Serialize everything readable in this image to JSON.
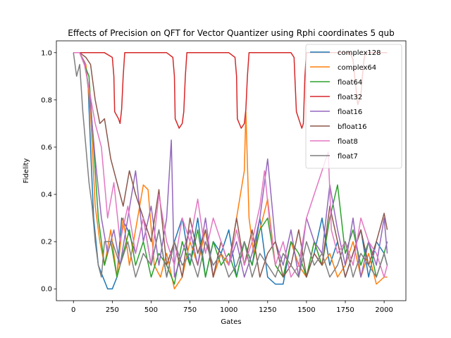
{
  "chart_data": {
    "type": "line",
    "title": "Effects of Precision on QFT for Vector Quantizer using Rphi coordinates 5 qub",
    "xlabel": "Gates",
    "ylabel": "Fidelity",
    "xlim": [
      -110,
      2140
    ],
    "ylim": [
      -0.05,
      1.05
    ],
    "xticks": [
      0,
      250,
      500,
      750,
      1000,
      1250,
      1500,
      1750,
      2000
    ],
    "yticks": [
      0.0,
      0.2,
      0.4,
      0.6,
      0.8,
      1.0
    ],
    "xtick_labels": [
      "0",
      "250",
      "500",
      "750",
      "1000",
      "1250",
      "1500",
      "1750",
      "2000"
    ],
    "ytick_labels": [
      "0.0",
      "0.2",
      "0.4",
      "0.6",
      "0.8",
      "1.0"
    ],
    "grid": false,
    "legend_position": "top-right",
    "series": [
      {
        "name": "complex128",
        "color": "#1f77b4",
        "x": [
          0,
          40,
          70,
          80,
          95,
          110,
          130,
          160,
          190,
          220,
          250,
          280,
          310,
          350,
          400,
          450,
          500,
          550,
          600,
          650,
          700,
          750,
          800,
          850,
          900,
          950,
          1000,
          1050,
          1100,
          1150,
          1200,
          1250,
          1300,
          1350,
          1400,
          1450,
          1500,
          1550,
          1600,
          1650,
          1700,
          1750,
          1800,
          1850,
          1900,
          1950,
          2000,
          2020
        ],
        "values": [
          1.0,
          1.0,
          0.95,
          0.93,
          0.85,
          0.6,
          0.3,
          0.1,
          0.05,
          0.0,
          0.0,
          0.05,
          0.3,
          0.25,
          0.15,
          0.3,
          0.1,
          0.25,
          0.05,
          0.2,
          0.3,
          0.1,
          0.3,
          0.05,
          0.2,
          0.15,
          0.25,
          0.05,
          0.2,
          0.1,
          0.3,
          0.05,
          0.02,
          0.02,
          0.2,
          0.1,
          0.05,
          0.15,
          0.3,
          0.1,
          0.2,
          0.05,
          0.15,
          0.25,
          0.05,
          0.2,
          0.15,
          0.1
        ]
      },
      {
        "name": "complex64",
        "color": "#ff7f0e",
        "x": [
          0,
          40,
          80,
          110,
          140,
          170,
          200,
          240,
          280,
          320,
          360,
          400,
          450,
          480,
          520,
          560,
          600,
          650,
          700,
          750,
          800,
          850,
          900,
          950,
          1000,
          1050,
          1100,
          1110,
          1130,
          1160,
          1200,
          1250,
          1300,
          1350,
          1400,
          1450,
          1500,
          1550,
          1600,
          1650,
          1700,
          1750,
          1800,
          1850,
          1900,
          1950,
          2000,
          2020
        ],
        "values": [
          1.0,
          1.0,
          0.95,
          0.75,
          0.35,
          0.2,
          0.1,
          0.25,
          0.05,
          0.3,
          0.1,
          0.25,
          0.44,
          0.42,
          0.1,
          0.05,
          0.15,
          0.0,
          0.05,
          0.2,
          0.1,
          0.25,
          0.05,
          0.15,
          0.1,
          0.3,
          0.5,
          0.75,
          0.3,
          0.15,
          0.25,
          0.38,
          0.1,
          0.05,
          0.2,
          0.1,
          0.05,
          0.2,
          0.1,
          0.15,
          0.05,
          0.1,
          0.2,
          0.05,
          0.15,
          0.02,
          0.05,
          0.05
        ]
      },
      {
        "name": "float64",
        "color": "#2ca02c",
        "x": [
          0,
          40,
          70,
          100,
          130,
          160,
          200,
          240,
          280,
          320,
          360,
          400,
          450,
          500,
          550,
          600,
          650,
          700,
          750,
          800,
          850,
          900,
          950,
          1000,
          1050,
          1100,
          1150,
          1200,
          1250,
          1300,
          1350,
          1400,
          1450,
          1500,
          1550,
          1600,
          1650,
          1700,
          1750,
          1800,
          1850,
          1900,
          1950,
          2000,
          2020
        ],
        "values": [
          1.0,
          1.0,
          0.95,
          0.9,
          0.6,
          0.3,
          0.1,
          0.2,
          0.05,
          0.15,
          0.25,
          0.1,
          0.2,
          0.05,
          0.15,
          0.1,
          0.02,
          0.2,
          0.1,
          0.25,
          0.05,
          0.2,
          0.1,
          0.15,
          0.05,
          0.2,
          0.1,
          0.25,
          0.3,
          0.1,
          0.05,
          0.2,
          0.15,
          0.05,
          0.2,
          0.1,
          0.3,
          0.44,
          0.15,
          0.25,
          0.1,
          0.2,
          0.05,
          0.15,
          0.2
        ]
      },
      {
        "name": "float32",
        "color": "#d62728",
        "x": [
          0,
          200,
          250,
          260,
          265,
          290,
          300,
          310,
          320,
          330,
          600,
          640,
          650,
          655,
          680,
          700,
          710,
          720,
          730,
          1000,
          1040,
          1050,
          1055,
          1080,
          1100,
          1110,
          1120,
          1130,
          1400,
          1420,
          1425,
          1435,
          1450,
          1470,
          1480,
          1490,
          1500,
          1780,
          1800,
          1810,
          1830,
          1850,
          1860,
          1870,
          1880,
          2020
        ],
        "values": [
          1.0,
          1.0,
          0.98,
          0.9,
          0.75,
          0.72,
          0.7,
          0.76,
          0.9,
          1.0,
          1.0,
          0.98,
          0.9,
          0.72,
          0.68,
          0.7,
          0.75,
          0.9,
          1.0,
          1.0,
          0.98,
          0.9,
          0.72,
          0.68,
          0.7,
          0.76,
          0.9,
          1.0,
          1.0,
          0.98,
          0.9,
          0.75,
          0.72,
          0.68,
          0.7,
          0.9,
          1.0,
          1.0,
          0.97,
          0.9,
          0.78,
          0.82,
          0.9,
          0.97,
          1.0,
          1.0
        ]
      },
      {
        "name": "float16",
        "color": "#9467bd",
        "x": [
          0,
          40,
          70,
          100,
          140,
          180,
          220,
          260,
          300,
          350,
          400,
          450,
          500,
          550,
          600,
          630,
          650,
          700,
          750,
          800,
          850,
          900,
          950,
          1000,
          1050,
          1100,
          1150,
          1200,
          1250,
          1300,
          1350,
          1400,
          1450,
          1500,
          1550,
          1600,
          1650,
          1700,
          1750,
          1800,
          1850,
          1900,
          1950,
          2000,
          2020
        ],
        "values": [
          1.0,
          1.0,
          0.96,
          0.85,
          0.55,
          0.3,
          0.15,
          0.25,
          0.1,
          0.3,
          0.5,
          0.2,
          0.35,
          0.1,
          0.3,
          0.63,
          0.05,
          0.15,
          0.25,
          0.1,
          0.3,
          0.05,
          0.2,
          0.1,
          0.2,
          0.05,
          0.15,
          0.3,
          0.55,
          0.2,
          0.1,
          0.25,
          0.05,
          0.3,
          0.2,
          0.15,
          0.44,
          0.25,
          0.1,
          0.3,
          0.05,
          0.2,
          0.1,
          0.3,
          0.15
        ]
      },
      {
        "name": "bfloat16",
        "color": "#8c564b",
        "x": [
          0,
          40,
          80,
          110,
          140,
          170,
          200,
          240,
          280,
          320,
          360,
          400,
          450,
          500,
          550,
          600,
          650,
          700,
          750,
          800,
          850,
          900,
          950,
          1000,
          1050,
          1100,
          1150,
          1200,
          1250,
          1300,
          1350,
          1400,
          1450,
          1500,
          1550,
          1600,
          1650,
          1700,
          1750,
          1800,
          1850,
          1900,
          1950,
          2000,
          2020
        ],
        "values": [
          1.0,
          1.0,
          0.98,
          0.95,
          0.8,
          0.7,
          0.72,
          0.55,
          0.45,
          0.35,
          0.5,
          0.4,
          0.3,
          0.2,
          0.42,
          0.1,
          0.2,
          0.05,
          0.3,
          0.15,
          0.25,
          0.05,
          0.2,
          0.1,
          0.3,
          0.1,
          0.25,
          0.05,
          0.15,
          0.2,
          0.05,
          0.1,
          0.25,
          0.05,
          0.15,
          0.1,
          0.35,
          0.2,
          0.05,
          0.15,
          0.25,
          0.1,
          0.2,
          0.32,
          0.25
        ]
      },
      {
        "name": "float8",
        "color": "#e377c2",
        "x": [
          0,
          40,
          70,
          100,
          140,
          180,
          220,
          260,
          300,
          350,
          400,
          450,
          500,
          550,
          600,
          650,
          700,
          750,
          800,
          850,
          900,
          950,
          1000,
          1050,
          1100,
          1150,
          1200,
          1230,
          1260,
          1300,
          1350,
          1400,
          1450,
          1500,
          1550,
          1600,
          1640,
          1660,
          1700,
          1750,
          1800,
          1850,
          1900,
          1950,
          2000,
          2020
        ],
        "values": [
          1.0,
          1.0,
          0.95,
          0.85,
          0.7,
          0.6,
          0.3,
          0.45,
          0.2,
          0.35,
          0.15,
          0.3,
          0.1,
          0.4,
          0.2,
          0.1,
          0.3,
          0.2,
          0.38,
          0.15,
          0.3,
          0.2,
          0.1,
          0.25,
          0.1,
          0.2,
          0.35,
          0.5,
          0.3,
          0.1,
          0.2,
          0.05,
          0.1,
          0.3,
          0.4,
          0.5,
          0.58,
          0.25,
          0.15,
          0.2,
          0.1,
          0.3,
          0.2,
          0.15,
          0.05,
          0.1
        ]
      },
      {
        "name": "float7",
        "color": "#7f7f7f",
        "x": [
          0,
          20,
          40,
          60,
          80,
          100,
          120,
          140,
          160,
          180,
          200,
          250,
          300,
          350,
          400,
          450,
          500,
          550,
          600,
          650,
          700,
          750,
          800,
          850,
          900,
          950,
          1000,
          1050,
          1100,
          1150,
          1200,
          1250,
          1300,
          1350,
          1400,
          1450,
          1500,
          1550,
          1600,
          1650,
          1700,
          1750,
          1800,
          1850,
          1900,
          1950,
          2000,
          2020
        ],
        "values": [
          1.0,
          0.9,
          0.95,
          0.75,
          0.6,
          0.45,
          0.35,
          0.2,
          0.1,
          0.05,
          0.2,
          0.2,
          0.1,
          0.2,
          0.05,
          0.15,
          0.1,
          0.25,
          0.05,
          0.2,
          0.1,
          0.15,
          0.05,
          0.2,
          0.1,
          0.15,
          0.05,
          0.1,
          0.2,
          0.05,
          0.15,
          0.1,
          0.05,
          0.15,
          0.1,
          0.05,
          0.2,
          0.1,
          0.15,
          0.05,
          0.1,
          0.2,
          0.05,
          0.15,
          0.1,
          0.05,
          0.15,
          0.1
        ]
      }
    ]
  }
}
